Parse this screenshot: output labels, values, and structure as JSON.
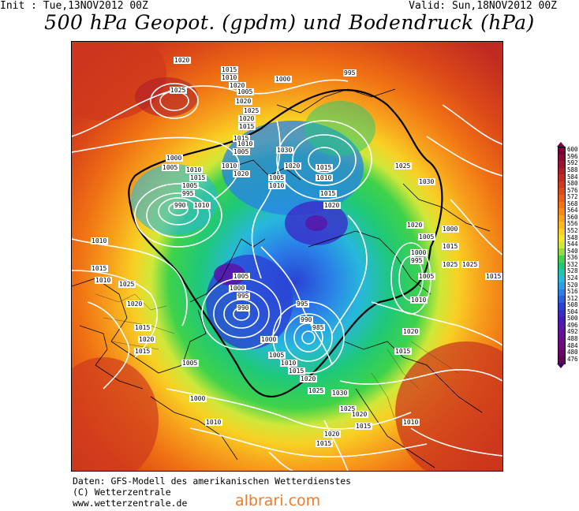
{
  "header": {
    "init": "Init : Tue,13NOV2012 00Z",
    "valid": "Valid: Sun,18NOV2012 00Z",
    "title": "500 hPa Geopot. (gpdm) und Bodendruck (hPa)"
  },
  "footer": {
    "line1": "Daten: GFS-Modell des amerikanischen Wetterdienstes",
    "line2": "(C) Wetterzentrale",
    "line3": "www.wetterzentrale.de",
    "watermark": "albrari.com"
  },
  "legend": {
    "levels": [
      {
        "value": "600",
        "color": "#7a003a"
      },
      {
        "value": "596",
        "color": "#8a0a3a"
      },
      {
        "value": "592",
        "color": "#9c1430"
      },
      {
        "value": "588",
        "color": "#b01e2a"
      },
      {
        "value": "584",
        "color": "#c02a22"
      },
      {
        "value": "580",
        "color": "#cf3a1c"
      },
      {
        "value": "576",
        "color": "#dc4a18"
      },
      {
        "value": "572",
        "color": "#e85e14"
      },
      {
        "value": "568",
        "color": "#f07214"
      },
      {
        "value": "564",
        "color": "#f58818"
      },
      {
        "value": "560",
        "color": "#f7a01c"
      },
      {
        "value": "556",
        "color": "#f8b820"
      },
      {
        "value": "552",
        "color": "#f8d024"
      },
      {
        "value": "548",
        "color": "#f2e62c"
      },
      {
        "value": "544",
        "color": "#cfe83a"
      },
      {
        "value": "540",
        "color": "#8ede42"
      },
      {
        "value": "536",
        "color": "#3fd24a"
      },
      {
        "value": "532",
        "color": "#1ec87a"
      },
      {
        "value": "528",
        "color": "#1ec4b0"
      },
      {
        "value": "524",
        "color": "#28b8dc"
      },
      {
        "value": "520",
        "color": "#2a9ee8"
      },
      {
        "value": "516",
        "color": "#2a80e8"
      },
      {
        "value": "512",
        "color": "#2a60e0"
      },
      {
        "value": "508",
        "color": "#2a42d4"
      },
      {
        "value": "504",
        "color": "#3a2ac8"
      },
      {
        "value": "500",
        "color": "#4a1ab8"
      },
      {
        "value": "496",
        "color": "#5a14a8"
      },
      {
        "value": "492",
        "color": "#661098"
      },
      {
        "value": "488",
        "color": "#6c0c88"
      },
      {
        "value": "484",
        "color": "#700a78"
      },
      {
        "value": "480",
        "color": "#6a0868"
      },
      {
        "value": "476",
        "color": "#600858"
      }
    ]
  },
  "isobar_labels": [
    "1020",
    "1025",
    "1015",
    "1010",
    "1020",
    "1005",
    "1000",
    "995",
    "1020",
    "1025",
    "1020",
    "1015",
    "1015",
    "1010",
    "1005",
    "1000",
    "1005",
    "1010",
    "1015",
    "1005",
    "995",
    "990",
    "1010",
    "1010",
    "1020",
    "1030",
    "1020",
    "1015",
    "1010",
    "1015",
    "1020",
    "1030",
    "1025",
    "1020",
    "1005",
    "1010",
    "1005",
    "1000",
    "995",
    "990",
    "985",
    "990",
    "995",
    "1000",
    "1005",
    "1010",
    "1015",
    "1020",
    "1025",
    "1030",
    "1025",
    "1020",
    "1015",
    "1010",
    "1015",
    "1020",
    "1010",
    "1005",
    "1000",
    "995",
    "1005",
    "1000",
    "1015",
    "1025",
    "1025",
    "1015",
    "1010",
    "1015",
    "1010",
    "1025",
    "1020",
    "1015",
    "1020",
    "1015",
    "1005",
    "1000",
    "1010",
    "1015",
    "1020"
  ]
}
